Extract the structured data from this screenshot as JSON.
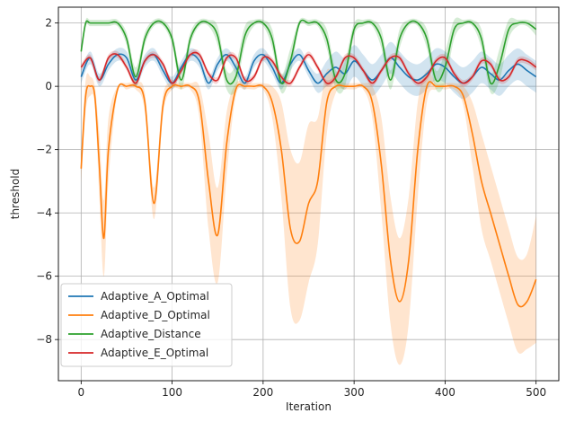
{
  "chart_data": {
    "type": "line",
    "title": "",
    "xlabel": "Iteration",
    "ylabel": "threshold",
    "xlim": [
      -25,
      525
    ],
    "ylim": [
      -9.3,
      2.5
    ],
    "xticks": [
      0,
      100,
      200,
      300,
      400,
      500
    ],
    "yticks": [
      -8,
      -6,
      -4,
      -2,
      0,
      2
    ],
    "xtick_labels": [
      "0",
      "100",
      "200",
      "300",
      "400",
      "500"
    ],
    "ytick_labels": [
      "−8",
      "−6",
      "−4",
      "−2",
      "0",
      "2"
    ],
    "grid": true,
    "legend_position": "lower-left",
    "series": [
      {
        "name": "Adaptive_A_Optimal",
        "color": "#1f77b4",
        "x": [
          0,
          10,
          20,
          30,
          40,
          50,
          60,
          70,
          80,
          90,
          100,
          110,
          120,
          130,
          140,
          150,
          160,
          170,
          180,
          190,
          200,
          210,
          220,
          230,
          240,
          250,
          260,
          270,
          280,
          290,
          300,
          310,
          320,
          330,
          340,
          350,
          360,
          370,
          380,
          390,
          400,
          410,
          420,
          430,
          440,
          450,
          460,
          470,
          480,
          490,
          500
        ],
        "y": [
          0.3,
          0.9,
          0.2,
          0.7,
          1.0,
          0.9,
          0.2,
          0.8,
          1.0,
          0.5,
          0.1,
          0.6,
          1.0,
          0.8,
          0.1,
          0.7,
          1.0,
          0.6,
          0.1,
          0.8,
          1.0,
          0.6,
          0.1,
          0.7,
          1.0,
          0.5,
          0.1,
          0.4,
          0.6,
          0.4,
          0.8,
          0.5,
          0.2,
          0.5,
          0.9,
          0.6,
          0.3,
          0.2,
          0.4,
          0.7,
          0.6,
          0.3,
          0.1,
          0.3,
          0.6,
          0.4,
          0.2,
          0.5,
          0.7,
          0.5,
          0.3
        ],
        "band_width": [
          0.2,
          0.2,
          0.2,
          0.2,
          0.2,
          0.2,
          0.2,
          0.2,
          0.2,
          0.2,
          0.2,
          0.2,
          0.2,
          0.2,
          0.2,
          0.2,
          0.2,
          0.2,
          0.2,
          0.2,
          0.2,
          0.2,
          0.2,
          0.2,
          0.2,
          0.2,
          0.3,
          0.4,
          0.5,
          0.5,
          0.5,
          0.5,
          0.5,
          0.5,
          0.5,
          0.5,
          0.5,
          0.5,
          0.5,
          0.5,
          0.5,
          0.5,
          0.5,
          0.5,
          0.5,
          0.5,
          0.5,
          0.5,
          0.5,
          0.5,
          0.5
        ]
      },
      {
        "name": "Adaptive_D_Optimal",
        "color": "#ff7f0e",
        "x": [
          0,
          5,
          10,
          15,
          20,
          25,
          30,
          40,
          50,
          60,
          70,
          80,
          90,
          100,
          110,
          120,
          130,
          140,
          150,
          160,
          170,
          180,
          190,
          200,
          210,
          220,
          230,
          240,
          250,
          260,
          270,
          280,
          290,
          300,
          310,
          320,
          330,
          340,
          350,
          360,
          370,
          380,
          390,
          400,
          410,
          420,
          430,
          440,
          450,
          460,
          470,
          480,
          490,
          500
        ],
        "y": [
          -2.6,
          -0.3,
          0.0,
          -0.3,
          -2.5,
          -4.8,
          -2.0,
          -0.1,
          0.0,
          0.0,
          -0.5,
          -3.7,
          -0.6,
          0.0,
          0.0,
          0.0,
          -0.5,
          -3.0,
          -4.7,
          -1.8,
          -0.1,
          0.0,
          0.0,
          0.0,
          -0.5,
          -2.0,
          -4.5,
          -4.9,
          -3.7,
          -3.0,
          -0.5,
          0.0,
          0.0,
          0.0,
          0.0,
          -0.5,
          -2.5,
          -5.5,
          -6.8,
          -5.5,
          -2.0,
          0.0,
          0.0,
          0.0,
          0.0,
          -0.3,
          -1.5,
          -3.0,
          -4.0,
          -5.0,
          -6.0,
          -6.9,
          -6.8,
          -6.1
        ],
        "band_width": [
          0.5,
          0.5,
          0.3,
          0.3,
          1.0,
          1.2,
          1.0,
          0.1,
          0.1,
          0.1,
          0.3,
          0.5,
          0.3,
          0.1,
          0.1,
          0.1,
          0.5,
          1.5,
          1.5,
          1.0,
          0.2,
          0.1,
          0.1,
          0.1,
          0.5,
          1.5,
          2.5,
          2.5,
          2.5,
          2.0,
          1.0,
          0.2,
          0.1,
          0.1,
          0.1,
          0.5,
          1.5,
          2.0,
          2.0,
          2.0,
          1.5,
          0.5,
          0.1,
          0.1,
          0.1,
          0.3,
          1.0,
          1.5,
          1.5,
          1.5,
          1.5,
          1.5,
          1.5,
          2.0
        ]
      },
      {
        "name": "Adaptive_Distance",
        "color": "#2ca02c",
        "x": [
          0,
          5,
          10,
          20,
          30,
          40,
          50,
          60,
          70,
          80,
          90,
          100,
          110,
          120,
          130,
          140,
          150,
          160,
          170,
          180,
          190,
          200,
          210,
          220,
          230,
          240,
          250,
          260,
          270,
          280,
          290,
          300,
          310,
          320,
          330,
          340,
          350,
          360,
          370,
          380,
          390,
          400,
          410,
          420,
          430,
          440,
          450,
          460,
          470,
          480,
          490,
          500
        ],
        "y": [
          1.1,
          2.0,
          2.0,
          2.0,
          2.0,
          2.0,
          1.5,
          0.3,
          1.5,
          2.0,
          2.0,
          1.5,
          0.2,
          1.5,
          2.0,
          2.0,
          1.6,
          0.2,
          0.3,
          1.6,
          2.0,
          2.0,
          1.5,
          0.1,
          0.8,
          2.0,
          2.0,
          2.0,
          1.5,
          0.2,
          0.4,
          1.8,
          2.0,
          2.0,
          1.5,
          0.2,
          1.5,
          2.0,
          2.0,
          1.5,
          0.2,
          0.6,
          1.8,
          2.0,
          2.0,
          1.5,
          0.1,
          0.7,
          1.8,
          2.0,
          2.0,
          1.8
        ],
        "band_width": [
          0.1,
          0.1,
          0.1,
          0.1,
          0.1,
          0.1,
          0.2,
          0.3,
          0.2,
          0.1,
          0.1,
          0.2,
          0.3,
          0.2,
          0.1,
          0.1,
          0.3,
          0.3,
          0.4,
          0.3,
          0.1,
          0.1,
          0.3,
          0.3,
          0.4,
          0.1,
          0.1,
          0.1,
          0.3,
          0.3,
          0.4,
          0.2,
          0.1,
          0.1,
          0.3,
          0.3,
          0.3,
          0.1,
          0.1,
          0.3,
          0.3,
          0.5,
          0.3,
          0.1,
          0.1,
          0.3,
          0.3,
          0.5,
          0.3,
          0.1,
          0.1,
          0.2
        ]
      },
      {
        "name": "Adaptive_E_Optimal",
        "color": "#d62728",
        "x": [
          0,
          10,
          20,
          30,
          40,
          50,
          60,
          70,
          80,
          90,
          100,
          110,
          120,
          130,
          140,
          150,
          160,
          170,
          180,
          190,
          200,
          210,
          220,
          230,
          240,
          250,
          260,
          270,
          280,
          290,
          300,
          310,
          320,
          330,
          340,
          350,
          360,
          370,
          380,
          390,
          400,
          410,
          420,
          430,
          440,
          450,
          460,
          470,
          480,
          490,
          500
        ],
        "y": [
          0.6,
          0.9,
          0.2,
          0.9,
          1.0,
          0.6,
          0.1,
          0.8,
          1.0,
          0.7,
          0.1,
          0.5,
          1.0,
          1.0,
          0.4,
          0.2,
          0.9,
          0.9,
          0.2,
          0.3,
          0.9,
          0.8,
          0.3,
          0.1,
          0.6,
          1.0,
          0.6,
          0.1,
          0.3,
          0.9,
          0.9,
          0.5,
          0.1,
          0.5,
          0.9,
          0.9,
          0.4,
          0.1,
          0.3,
          0.8,
          0.9,
          0.4,
          0.1,
          0.3,
          0.8,
          0.7,
          0.2,
          0.3,
          0.8,
          0.8,
          0.6
        ],
        "band_width": [
          0.1,
          0.1,
          0.1,
          0.1,
          0.1,
          0.1,
          0.1,
          0.1,
          0.1,
          0.1,
          0.1,
          0.1,
          0.1,
          0.1,
          0.1,
          0.1,
          0.1,
          0.1,
          0.1,
          0.1,
          0.1,
          0.1,
          0.1,
          0.1,
          0.1,
          0.1,
          0.1,
          0.1,
          0.1,
          0.1,
          0.1,
          0.1,
          0.1,
          0.1,
          0.1,
          0.1,
          0.1,
          0.1,
          0.1,
          0.1,
          0.1,
          0.1,
          0.1,
          0.1,
          0.1,
          0.1,
          0.1,
          0.1,
          0.1,
          0.1,
          0.1
        ]
      }
    ]
  }
}
